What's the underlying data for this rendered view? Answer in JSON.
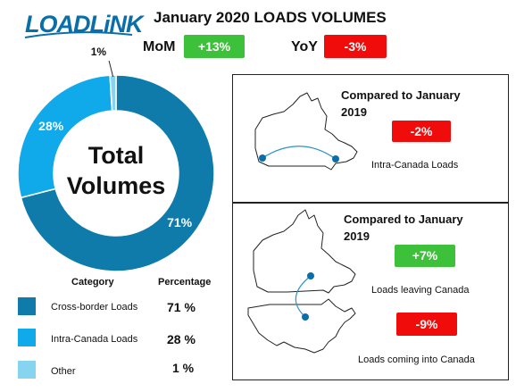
{
  "header": {
    "logo_text": "LOADLiNK",
    "title": "January 2020 LOADS VOLUMES",
    "mom_label": "MoM",
    "mom_value": "+13%",
    "yoy_label": "YoY",
    "yoy_value": "-3%"
  },
  "colors": {
    "cross_border": "#0e7bab",
    "intra_canada": "#10aaea",
    "other": "#87d4f1",
    "positive": "#3ec13a",
    "negative": "#f10c0c"
  },
  "chart_data": {
    "type": "pie",
    "center_label": [
      "Total",
      "Volumes"
    ],
    "categories": [
      "Cross-border Loads",
      "Intra-Canada Loads",
      "Other"
    ],
    "values": [
      71,
      28,
      1
    ],
    "data_labels": [
      "71%",
      "28%",
      "1%"
    ]
  },
  "legend": {
    "category_header": "Category",
    "percentage_header": "Percentage",
    "rows": [
      {
        "category": "Cross-border Loads",
        "percentage": "71 %"
      },
      {
        "category": "Intra-Canada Loads",
        "percentage": "28 %"
      },
      {
        "category": "Other",
        "percentage": "1 %"
      }
    ]
  },
  "panels": {
    "top": {
      "heading_line1": "Compared to January",
      "heading_line2": "2019",
      "value": "-2%",
      "caption": "Intra-Canada Loads"
    },
    "bottom": {
      "heading_line1": "Compared to January",
      "heading_line2": "2019",
      "leaving_value": "+7%",
      "leaving_caption": "Loads leaving Canada",
      "coming_value": "-9%",
      "coming_caption": "Loads coming into Canada"
    }
  }
}
